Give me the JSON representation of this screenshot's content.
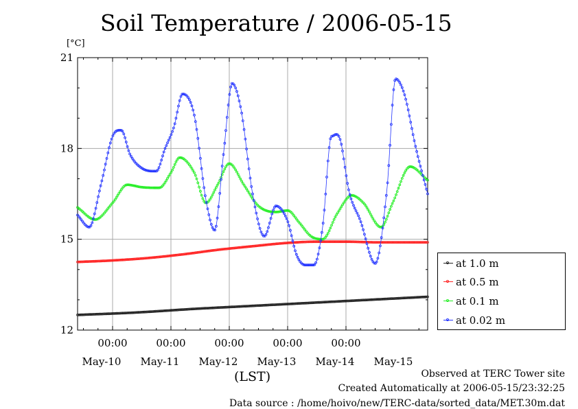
{
  "chart_data": {
    "type": "line",
    "title": "Soil Temperature / 2006-05-15",
    "unit_label": "[°C]",
    "xlabel": "(LST)",
    "x_unit": "days since 2006-05-09 00:00",
    "xlim": [
      0.4,
      6.4
    ],
    "ylim": [
      12,
      21
    ],
    "y_ticks": [
      12,
      15,
      18,
      21
    ],
    "x_tick_positions": [
      1,
      2,
      3,
      4,
      5
    ],
    "x_tick_labels": [
      "00:00",
      "00:00",
      "00:00",
      "00:00",
      "00:00"
    ],
    "x_day_label_positions": [
      1,
      2,
      3,
      4,
      5,
      6
    ],
    "x_day_labels": [
      "May-10",
      "May-11",
      "May-12",
      "May-13",
      "May-14",
      "May-15"
    ],
    "grid": true,
    "legend_position": "right",
    "series": [
      {
        "name": "at 1.0 m",
        "color": "#222222",
        "x": [
          0.4,
          1.4,
          2.4,
          3.4,
          4.4,
          5.4,
          6.4
        ],
        "y": [
          12.5,
          12.58,
          12.7,
          12.8,
          12.9,
          13.0,
          13.1
        ]
      },
      {
        "name": "at 0.5 m",
        "color": "#ff2222",
        "x": [
          0.4,
          1.0,
          1.6,
          2.2,
          2.8,
          3.4,
          4.0,
          4.5,
          5.0,
          5.5,
          6.0,
          6.4
        ],
        "y": [
          14.25,
          14.3,
          14.38,
          14.5,
          14.65,
          14.77,
          14.88,
          14.92,
          14.92,
          14.9,
          14.9,
          14.9
        ]
      },
      {
        "name": "at 0.1 m",
        "color": "#22ee22",
        "x": [
          0.4,
          0.7,
          1.0,
          1.25,
          1.5,
          1.8,
          2.0,
          2.15,
          2.4,
          2.6,
          2.8,
          3.0,
          3.25,
          3.5,
          3.8,
          4.0,
          4.2,
          4.4,
          4.6,
          4.85,
          5.1,
          5.3,
          5.6,
          5.8,
          6.1,
          6.4
        ],
        "y": [
          16.05,
          15.65,
          16.2,
          16.8,
          16.72,
          16.7,
          17.2,
          17.7,
          17.2,
          16.2,
          16.8,
          17.5,
          16.8,
          16.1,
          15.9,
          15.95,
          15.55,
          15.1,
          15.0,
          15.85,
          16.45,
          16.2,
          15.4,
          16.2,
          17.4,
          16.95
        ]
      },
      {
        "name": "at 0.02 m",
        "color": "#2233ff",
        "x": [
          0.4,
          0.6,
          0.8,
          1.0,
          1.15,
          1.3,
          1.5,
          1.75,
          1.9,
          2.05,
          2.2,
          2.4,
          2.6,
          2.75,
          2.9,
          3.05,
          3.2,
          3.4,
          3.6,
          3.8,
          4.0,
          4.15,
          4.3,
          4.45,
          4.6,
          4.75,
          4.9,
          5.05,
          5.25,
          5.5,
          5.7,
          5.85,
          6.0,
          6.2,
          6.4
        ],
        "y": [
          15.8,
          15.4,
          16.8,
          18.4,
          18.6,
          17.8,
          17.35,
          17.25,
          18.0,
          18.7,
          19.8,
          19.1,
          16.3,
          15.3,
          17.8,
          20.15,
          19.3,
          16.5,
          15.1,
          16.1,
          15.6,
          14.5,
          14.15,
          14.15,
          15.4,
          18.4,
          18.3,
          16.6,
          15.6,
          14.2,
          16.6,
          20.3,
          19.8,
          18.0,
          16.5
        ]
      }
    ]
  },
  "footer": {
    "observed": "Observed at TERC Tower site",
    "created": "Created Automatically at 2006-05-15/23:32:25",
    "source": "Data source : /home/hoivo/new/TERC-data/sorted_data/MET.30m.dat"
  }
}
